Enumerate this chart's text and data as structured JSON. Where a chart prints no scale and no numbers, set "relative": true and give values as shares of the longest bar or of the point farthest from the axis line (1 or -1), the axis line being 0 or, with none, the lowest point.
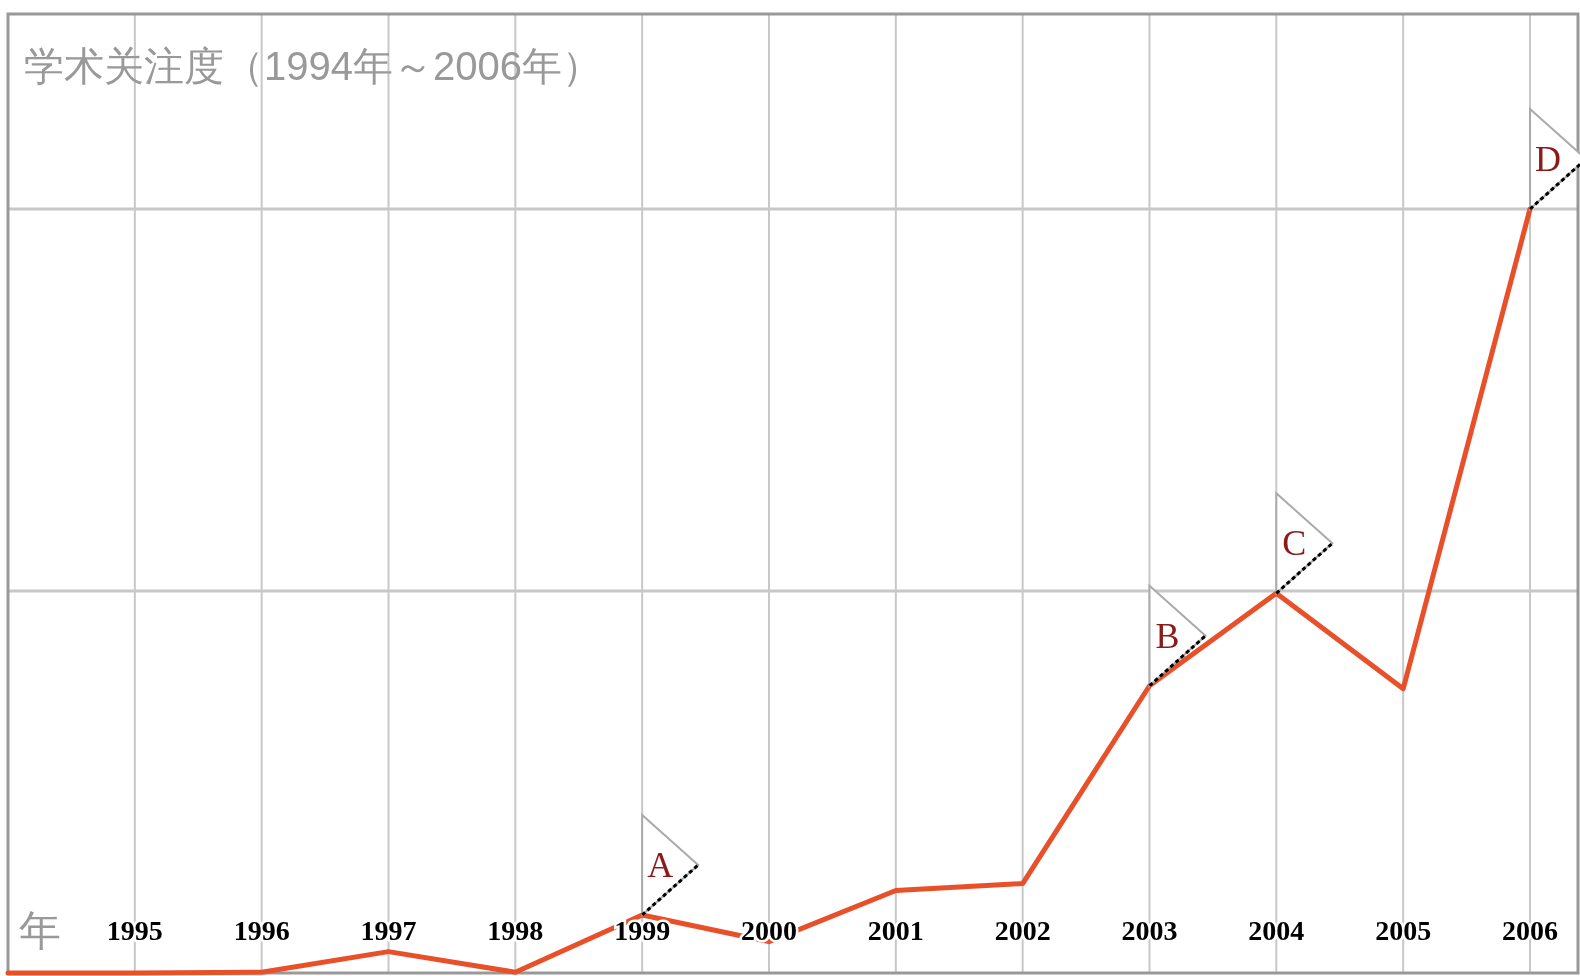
{
  "chart_data": {
    "type": "line",
    "title": "学术关注度（1994年～2006年）",
    "xlabel": "年",
    "categories": [
      null,
      "1995",
      "1996",
      "1997",
      "1998",
      "1999",
      "2000",
      "2001",
      "2002",
      "2003",
      "2004",
      "2005",
      "2006"
    ],
    "relative": true,
    "grid": "x",
    "ref_lines": [
      {
        "axis": "y",
        "value": 0.5,
        "color": "#c8c8c8"
      },
      {
        "axis": "y",
        "value": 1,
        "color": "#c8c8c8"
      }
    ],
    "series": [
      {
        "color": "#e8502a",
        "values": [
          0,
          0,
          0.001,
          0.028,
          0.001,
          0.076,
          0.041,
          0.108,
          0.117,
          0.376,
          0.497,
          0.372,
          1
        ]
      }
    ],
    "annotations": [
      {
        "text": "A",
        "x": "1999",
        "y": 0.076
      },
      {
        "text": "B",
        "x": "2003",
        "y": 0.376
      },
      {
        "text": "C",
        "x": "2004",
        "y": 0.497
      },
      {
        "text": "D",
        "x": "2006",
        "y": 1
      }
    ]
  }
}
